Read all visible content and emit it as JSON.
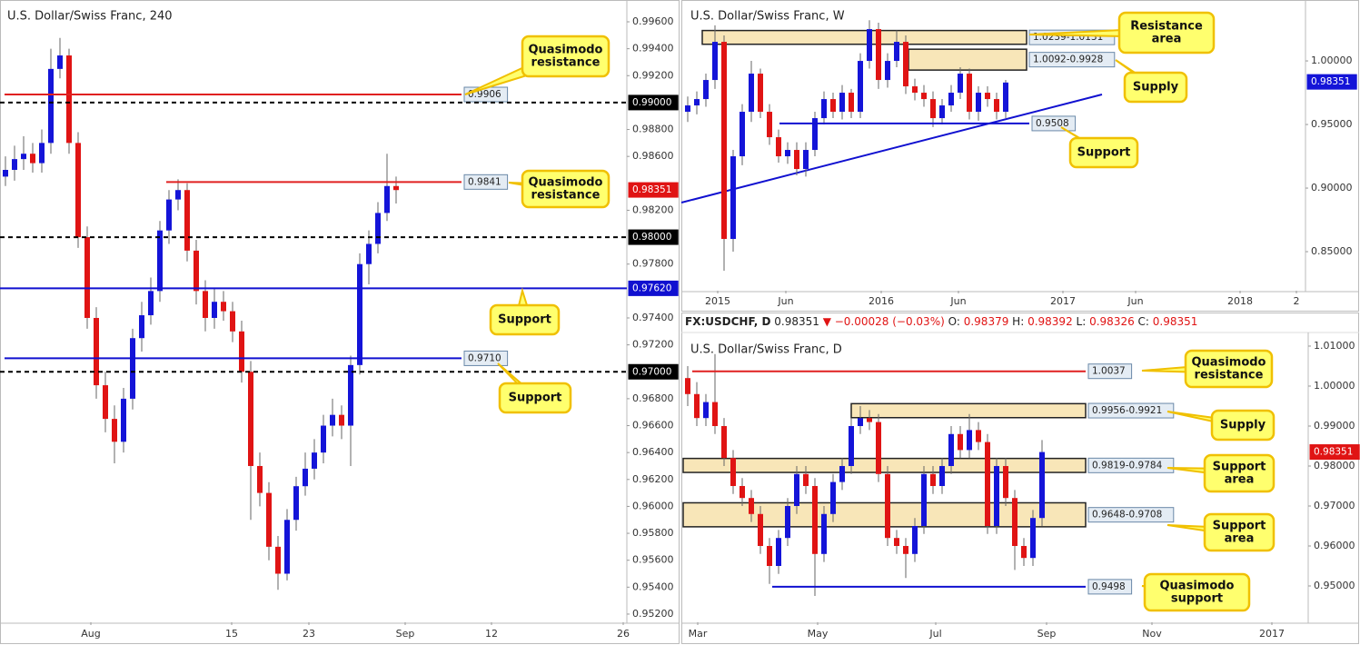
{
  "chart_data": [
    {
      "type": "candlestick",
      "title": "U.S. Dollar/Swiss Franc, 240",
      "xlim": [
        -0.6,
        68.4
      ],
      "ylim": [
        0.95139,
        0.99762
      ],
      "xticks": [
        {
          "value": 9.4,
          "label": "Aug"
        },
        {
          "value": 24.9,
          "label": "15"
        },
        {
          "value": 33.4,
          "label": "23"
        },
        {
          "value": 44,
          "label": "Sep"
        },
        {
          "value": 53.5,
          "label": "12"
        },
        {
          "value": 68,
          "label": "26"
        }
      ],
      "yticks": [
        {
          "value": 0.996,
          "label": "0.99600"
        },
        {
          "value": 0.994,
          "label": "0.99400"
        },
        {
          "value": 0.992,
          "label": "0.99200"
        },
        {
          "value": 0.988,
          "label": "0.98800"
        },
        {
          "value": 0.986,
          "label": "0.98600"
        },
        {
          "value": 0.982,
          "label": "0.98200"
        },
        {
          "value": 0.978,
          "label": "0.97800"
        },
        {
          "value": 0.974,
          "label": "0.97400"
        },
        {
          "value": 0.972,
          "label": "0.97200"
        },
        {
          "value": 0.968,
          "label": "0.96800"
        },
        {
          "value": 0.966,
          "label": "0.96600"
        },
        {
          "value": 0.964,
          "label": "0.96400"
        },
        {
          "value": 0.962,
          "label": "0.96200"
        },
        {
          "value": 0.96,
          "label": "0.96000"
        },
        {
          "value": 0.958,
          "label": "0.95800"
        },
        {
          "value": 0.956,
          "label": "0.95600"
        },
        {
          "value": 0.954,
          "label": "0.95400"
        },
        {
          "value": 0.952,
          "label": "0.95200"
        }
      ],
      "open": [
        0.9845,
        0.985,
        0.9858,
        0.9862,
        0.9855,
        0.987,
        0.9925,
        0.9935,
        0.987,
        0.98,
        0.974,
        0.969,
        0.9665,
        0.9648,
        0.968,
        0.9725,
        0.9742,
        0.976,
        0.9805,
        0.9828,
        0.9835,
        0.979,
        0.976,
        0.974,
        0.9752,
        0.9745,
        0.973,
        0.97,
        0.963,
        0.961,
        0.957,
        0.955,
        0.959,
        0.9615,
        0.9628,
        0.964,
        0.966,
        0.9668,
        0.966,
        0.9705,
        0.978,
        0.9795,
        0.9818,
        0.9838
      ],
      "high": [
        0.986,
        0.9868,
        0.9875,
        0.987,
        0.988,
        0.994,
        0.9948,
        0.994,
        0.9878,
        0.9808,
        0.9748,
        0.97,
        0.9675,
        0.9688,
        0.9732,
        0.9752,
        0.977,
        0.9812,
        0.9835,
        0.9843,
        0.984,
        0.9798,
        0.9768,
        0.9762,
        0.976,
        0.9752,
        0.9738,
        0.9708,
        0.964,
        0.9618,
        0.9578,
        0.9598,
        0.9622,
        0.964,
        0.965,
        0.9668,
        0.968,
        0.9675,
        0.9712,
        0.9788,
        0.9805,
        0.9826,
        0.9862,
        0.9845
      ],
      "low": [
        0.9838,
        0.9842,
        0.985,
        0.9848,
        0.9848,
        0.9862,
        0.9918,
        0.9862,
        0.9792,
        0.9732,
        0.968,
        0.9655,
        0.9632,
        0.964,
        0.9672,
        0.9715,
        0.9735,
        0.9752,
        0.9795,
        0.982,
        0.9782,
        0.975,
        0.973,
        0.9732,
        0.9738,
        0.9722,
        0.9692,
        0.959,
        0.96,
        0.956,
        0.9538,
        0.9545,
        0.9582,
        0.9608,
        0.962,
        0.9632,
        0.9652,
        0.965,
        0.963,
        0.9698,
        0.9765,
        0.9788,
        0.9812,
        0.9825
      ],
      "close": [
        0.985,
        0.9858,
        0.9862,
        0.9855,
        0.987,
        0.9925,
        0.9935,
        0.987,
        0.98,
        0.974,
        0.969,
        0.9665,
        0.9648,
        0.968,
        0.9725,
        0.9742,
        0.976,
        0.9805,
        0.9828,
        0.9835,
        0.979,
        0.976,
        0.974,
        0.9752,
        0.9745,
        0.973,
        0.97,
        0.963,
        0.961,
        0.957,
        0.955,
        0.959,
        0.9615,
        0.9628,
        0.964,
        0.966,
        0.9668,
        0.966,
        0.9705,
        0.978,
        0.9795,
        0.9818,
        0.9838,
        0.9835
      ],
      "up_color": "#1414d8",
      "down_color": "#e01414",
      "levels": [
        {
          "value": 0.9906,
          "color": "#e02020",
          "dash": false,
          "x_range": [
            -0.1,
            50.2
          ],
          "tag": "box"
        },
        {
          "value": 0.99,
          "label": "0.99000",
          "color": "#000000",
          "dash": true,
          "x_range": [
            -0.6,
            68.4
          ],
          "tag": "axis"
        },
        {
          "value": 0.9841,
          "color": "#e02020",
          "dash": false,
          "x_range": [
            17.7,
            50.2
          ],
          "tag": "box"
        },
        {
          "value": 0.98,
          "label": "0.98000",
          "color": "#000000",
          "dash": true,
          "x_range": [
            -0.6,
            68.4
          ],
          "tag": "axis"
        },
        {
          "value": 0.9762,
          "label": "0.97620",
          "color": "#1010d0",
          "dash": false,
          "x_range": [
            -0.6,
            68.4
          ],
          "tag": "axis"
        },
        {
          "value": 0.971,
          "label": "0.9710",
          "color": "#1010d0",
          "dash": false,
          "x_range": [
            -0.1,
            50.2
          ],
          "tag": "box"
        },
        {
          "value": 0.97,
          "label": "0.97000",
          "color": "#000000",
          "dash": true,
          "x_range": [
            -0.6,
            68.4
          ],
          "tag": "axis"
        }
      ],
      "zones": [],
      "trendlines": [],
      "last": 0.98351,
      "last_color": "#e01414",
      "callouts": [
        {
          "lines": [
            "Quasimodo",
            "resistance"
          ]
        },
        {
          "lines": [
            "Quasimodo",
            "resistance"
          ]
        },
        {
          "lines": [
            "Support"
          ]
        },
        {
          "lines": [
            "Support"
          ]
        }
      ]
    },
    {
      "type": "candlestick",
      "title": "U.S. Dollar/Swiss Franc, W",
      "xlim": [
        -0.7,
        68.0
      ],
      "ylim": [
        0.8193,
        1.0479
      ],
      "xticks": [
        {
          "value": 3.3,
          "label": "2015"
        },
        {
          "value": 10.8,
          "label": "Jun"
        },
        {
          "value": 21.3,
          "label": "2016"
        },
        {
          "value": 29.8,
          "label": "Jun"
        },
        {
          "value": 41.3,
          "label": "2017"
        },
        {
          "value": 49.3,
          "label": "Jun"
        },
        {
          "value": 60.8,
          "label": "2018"
        },
        {
          "value": 67,
          "label": "2"
        }
      ],
      "yticks": [
        {
          "value": 1.0,
          "label": "1.00000"
        },
        {
          "value": 0.95,
          "label": "0.95000"
        },
        {
          "value": 0.9,
          "label": "0.90000"
        },
        {
          "value": 0.85,
          "label": "0.85000"
        }
      ],
      "open": [
        0.96,
        0.965,
        0.97,
        0.985,
        1.015,
        0.86,
        0.925,
        0.96,
        0.99,
        0.96,
        0.94,
        0.925,
        0.93,
        0.915,
        0.93,
        0.955,
        0.97,
        0.96,
        0.975,
        0.96,
        1.0,
        1.025,
        0.985,
        1.0,
        1.015,
        0.98,
        0.975,
        0.97,
        0.955,
        0.965,
        0.975,
        0.99,
        0.96,
        0.975,
        0.97,
        0.96
      ],
      "high": [
        0.972,
        0.976,
        0.99,
        1.028,
        1.02,
        0.93,
        0.966,
        1.0,
        0.994,
        0.966,
        0.946,
        0.936,
        0.936,
        0.936,
        0.96,
        0.976,
        0.975,
        0.981,
        0.978,
        1.006,
        1.032,
        1.03,
        1.006,
        1.024,
        1.02,
        0.986,
        0.981,
        0.976,
        0.97,
        0.981,
        0.995,
        0.994,
        0.98,
        0.98,
        0.975,
        0.985
      ],
      "low": [
        0.952,
        0.958,
        0.964,
        0.978,
        0.835,
        0.85,
        0.918,
        0.952,
        0.955,
        0.934,
        0.92,
        0.919,
        0.91,
        0.909,
        0.925,
        0.95,
        0.955,
        0.954,
        0.955,
        0.955,
        0.994,
        0.978,
        0.979,
        0.995,
        0.974,
        0.969,
        0.964,
        0.948,
        0.95,
        0.96,
        0.97,
        0.954,
        0.953,
        0.964,
        0.954,
        0.955
      ],
      "close": [
        0.965,
        0.97,
        0.985,
        1.015,
        0.86,
        0.925,
        0.96,
        0.99,
        0.96,
        0.94,
        0.925,
        0.93,
        0.915,
        0.93,
        0.955,
        0.97,
        0.96,
        0.975,
        0.96,
        1.0,
        1.025,
        0.985,
        1.0,
        1.015,
        0.98,
        0.975,
        0.97,
        0.955,
        0.965,
        0.975,
        0.99,
        0.96,
        0.975,
        0.97,
        0.96,
        0.983
      ],
      "up_color": "#1414d8",
      "down_color": "#e01414",
      "levels": [
        {
          "value": 0.9508,
          "color": "#1010d0",
          "dash": false,
          "x_range": [
            10.1,
            37.6
          ],
          "tag": "box"
        }
      ],
      "zones": [
        {
          "from": 1.0239,
          "to": 1.0131,
          "label": "1.0239-1.0131",
          "x_range": [
            1.6,
            37.3
          ]
        },
        {
          "from": 1.0092,
          "to": 0.9928,
          "label": "1.0092-0.9928",
          "x_range": [
            24.3,
            37.3
          ]
        }
      ],
      "trendlines": [
        {
          "from": [
            -0.7,
            0.8886
          ],
          "to": [
            45.6,
            0.9736
          ],
          "color": "#1010d0"
        }
      ],
      "last": 0.98351,
      "last_color": "#1414d8",
      "callouts": [
        {
          "lines": [
            "Resistance",
            "area"
          ]
        },
        {
          "lines": [
            "Supply"
          ]
        },
        {
          "lines": [
            "Support"
          ]
        }
      ]
    },
    {
      "type": "candlestick",
      "title": "U.S. Dollar/Swiss Franc, D",
      "info": {
        "symbol": "FX:USDCHF, D",
        "last": 0.98351,
        "change": {
          "value": -0.00028,
          "label": "▼ −0.00028 (−0.03%)"
        },
        "ohlc": [
          {
            "name": "O:",
            "value": 0.98379
          },
          {
            "name": "H:",
            "value": 0.98392
          },
          {
            "name": "L:",
            "value": 0.98326
          },
          {
            "name": "C:",
            "value": 0.98351
          }
        ]
      },
      "xlim": [
        -0.7,
        68.3
      ],
      "ylim": [
        0.94091,
        1.01295
      ],
      "xticks": [
        {
          "value": 1.1,
          "label": "Mar"
        },
        {
          "value": 14.3,
          "label": "May"
        },
        {
          "value": 27.3,
          "label": "Jul"
        },
        {
          "value": 39.5,
          "label": "Sep"
        },
        {
          "value": 51.1,
          "label": "Nov"
        },
        {
          "value": 64.3,
          "label": "2017"
        }
      ],
      "yticks": [
        {
          "value": 1.01,
          "label": "1.01000"
        },
        {
          "value": 1.0,
          "label": "1.00000"
        },
        {
          "value": 0.99,
          "label": "0.99000"
        },
        {
          "value": 0.98,
          "label": "0.98000"
        },
        {
          "value": 0.97,
          "label": "0.97000"
        },
        {
          "value": 0.96,
          "label": "0.96000"
        },
        {
          "value": 0.95,
          "label": "0.95000"
        }
      ],
      "open": [
        1.002,
        0.998,
        0.992,
        0.996,
        0.99,
        0.982,
        0.975,
        0.972,
        0.968,
        0.96,
        0.955,
        0.962,
        0.97,
        0.978,
        0.975,
        0.958,
        0.968,
        0.976,
        0.98,
        0.99,
        0.992,
        0.991,
        0.978,
        0.962,
        0.96,
        0.958,
        0.965,
        0.978,
        0.975,
        0.98,
        0.988,
        0.984,
        0.989,
        0.986,
        0.965,
        0.98,
        0.972,
        0.96,
        0.957,
        0.967
      ],
      "high": [
        1.005,
        1.001,
        0.998,
        1.008,
        0.992,
        0.984,
        0.977,
        0.974,
        0.97,
        0.962,
        0.964,
        0.972,
        0.98,
        0.98,
        0.977,
        0.97,
        0.978,
        0.982,
        0.992,
        0.995,
        0.994,
        0.993,
        0.98,
        0.964,
        0.962,
        0.967,
        0.98,
        0.98,
        0.982,
        0.99,
        0.99,
        0.993,
        0.991,
        0.988,
        0.982,
        0.982,
        0.974,
        0.962,
        0.969,
        0.9865
      ],
      "low": [
        0.995,
        0.99,
        0.99,
        0.988,
        0.98,
        0.973,
        0.97,
        0.966,
        0.958,
        0.9505,
        0.953,
        0.96,
        0.968,
        0.973,
        0.9475,
        0.956,
        0.966,
        0.974,
        0.978,
        0.988,
        0.989,
        0.976,
        0.96,
        0.958,
        0.952,
        0.956,
        0.963,
        0.973,
        0.973,
        0.978,
        0.982,
        0.982,
        0.984,
        0.963,
        0.963,
        0.97,
        0.954,
        0.955,
        0.955,
        0.965
      ],
      "close": [
        0.998,
        0.992,
        0.996,
        0.99,
        0.982,
        0.975,
        0.972,
        0.968,
        0.96,
        0.955,
        0.962,
        0.97,
        0.978,
        0.975,
        0.958,
        0.968,
        0.976,
        0.98,
        0.99,
        0.992,
        0.991,
        0.978,
        0.962,
        0.96,
        0.958,
        0.965,
        0.978,
        0.975,
        0.98,
        0.988,
        0.984,
        0.989,
        0.986,
        0.965,
        0.98,
        0.972,
        0.96,
        0.957,
        0.967,
        0.9835
      ],
      "up_color": "#1414d8",
      "down_color": "#e01414",
      "levels": [
        {
          "value": 1.0037,
          "color": "#e02020",
          "dash": false,
          "x_range": [
            0.5,
            43.8
          ],
          "tag": "box"
        },
        {
          "value": 0.9498,
          "color": "#1010d0",
          "dash": false,
          "x_range": [
            9.3,
            43.8
          ],
          "tag": "box"
        }
      ],
      "zones": [
        {
          "from": 0.9956,
          "to": 0.9921,
          "label": "0.9956-0.9921",
          "x_range": [
            18,
            43.8
          ]
        },
        {
          "from": 0.9819,
          "to": 0.9784,
          "label": "0.9819-0.9784",
          "x_range": [
            -0.5,
            43.8
          ]
        },
        {
          "from": 0.9648,
          "to": 0.9708,
          "label": "0.9648-0.9708",
          "x_range": [
            -0.5,
            43.8
          ]
        }
      ],
      "trendlines": [],
      "last": 0.98351,
      "last_color": "#e01414",
      "callouts": [
        {
          "lines": [
            "Quasimodo",
            "resistance"
          ]
        },
        {
          "lines": [
            "Supply"
          ]
        },
        {
          "lines": [
            "Support",
            "area"
          ]
        },
        {
          "lines": [
            "Support",
            "area"
          ]
        },
        {
          "lines": [
            "Quasimodo",
            "support"
          ]
        }
      ]
    }
  ]
}
